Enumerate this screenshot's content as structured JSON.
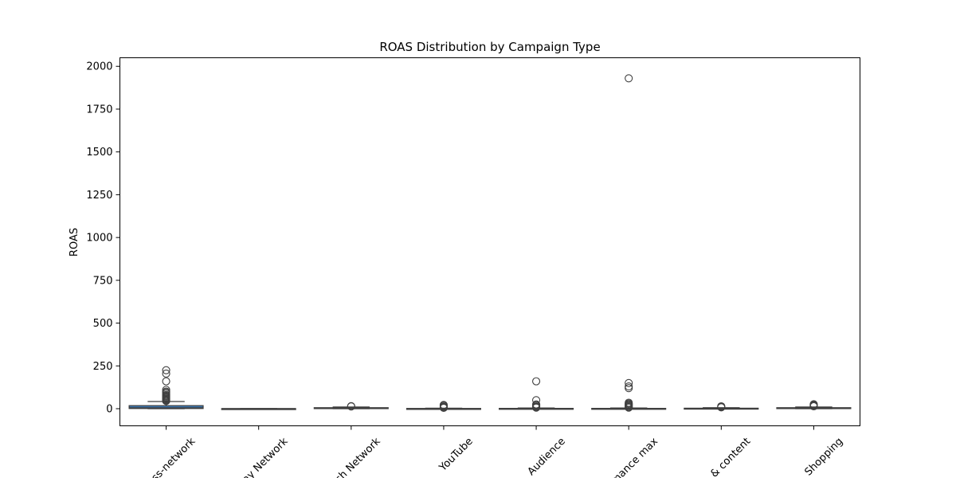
{
  "chart_data": {
    "type": "box",
    "title": "ROAS Distribution by Campaign Type",
    "xlabel": "",
    "ylabel": "ROAS",
    "ylim": [
      -100,
      2050
    ],
    "yticks": [
      0,
      250,
      500,
      750,
      1000,
      1250,
      1500,
      1750,
      2000
    ],
    "grid": false,
    "categories": [
      "Cross-network",
      "Display Network",
      "Search Network",
      "YouTube",
      "Audience",
      "Performance max",
      "Video & content",
      "Shopping"
    ],
    "category_labels_visible": [
      "ss-network",
      "ay Network",
      "ch Network",
      "YouTube",
      "Audience",
      "mance max",
      "& content",
      "Shopping"
    ],
    "box_color": "#3a77b2",
    "boxes": [
      {
        "q1": 1,
        "median": 5,
        "q3": 18,
        "whisker_low": 0,
        "whisker_high": 42,
        "outliers": [
          45,
          50,
          55,
          60,
          65,
          70,
          75,
          80,
          88,
          95,
          100,
          110,
          160,
          205,
          225
        ]
      },
      {
        "q1": 0,
        "median": 0,
        "q3": 0.5,
        "whisker_low": 0,
        "whisker_high": 1,
        "outliers": []
      },
      {
        "q1": 2,
        "median": 4,
        "q3": 6,
        "whisker_low": 0,
        "whisker_high": 10,
        "outliers": [
          13,
          15
        ]
      },
      {
        "q1": 0,
        "median": 0.5,
        "q3": 1.5,
        "whisker_low": 0,
        "whisker_high": 3,
        "outliers": [
          5,
          8,
          12,
          18,
          22
        ]
      },
      {
        "q1": 0,
        "median": 0.5,
        "q3": 2,
        "whisker_low": 0,
        "whisker_high": 4,
        "outliers": [
          6,
          10,
          14,
          20,
          25,
          50,
          160
        ]
      },
      {
        "q1": 0,
        "median": 0.5,
        "q3": 2,
        "whisker_low": 0,
        "whisker_high": 4,
        "outliers": [
          6,
          10,
          15,
          20,
          25,
          30,
          35,
          120,
          130,
          150,
          1930
        ]
      },
      {
        "q1": 0,
        "median": 1,
        "q3": 3,
        "whisker_low": 0,
        "whisker_high": 6,
        "outliers": [
          8,
          11,
          14
        ]
      },
      {
        "q1": 2,
        "median": 4,
        "q3": 6,
        "whisker_low": 0,
        "whisker_high": 10,
        "outliers": [
          14,
          18,
          22,
          26
        ]
      }
    ]
  }
}
